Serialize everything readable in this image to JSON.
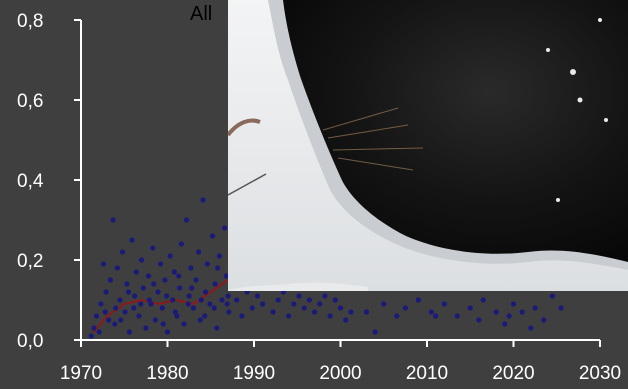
{
  "title_fragment": "All",
  "chart_data": {
    "type": "scatter",
    "title": "",
    "xlabel": "",
    "ylabel": "",
    "xlim": [
      1970,
      2030
    ],
    "ylim": [
      0.0,
      0.8
    ],
    "x_ticks": [
      1970,
      1980,
      1990,
      2000,
      2010,
      2020,
      2030
    ],
    "y_ticks": [
      0.0,
      0.2,
      0.4,
      0.6,
      0.8
    ],
    "x_tick_labels": [
      "1970",
      "1980",
      "1990",
      "2000",
      "2010",
      "2020",
      "2030"
    ],
    "y_tick_labels": [
      "0,0",
      "0,2",
      "0,4",
      "0,6",
      "0,8"
    ],
    "grid": false,
    "series": [
      {
        "kind": "points",
        "color": "#1a1a7a",
        "points": [
          [
            1971.2,
            0.01
          ],
          [
            1971.5,
            0.03
          ],
          [
            1971.8,
            0.06
          ],
          [
            1972.1,
            0.02
          ],
          [
            1972.3,
            0.09
          ],
          [
            1972.6,
            0.19
          ],
          [
            1972.9,
            0.12
          ],
          [
            1973.2,
            0.05
          ],
          [
            1973.4,
            0.15
          ],
          [
            1973.7,
            0.3
          ],
          [
            1973.9,
            0.04
          ],
          [
            1974.2,
            0.18
          ],
          [
            1974.5,
            0.1
          ],
          [
            1974.8,
            0.22
          ],
          [
            1975.1,
            0.07
          ],
          [
            1975.3,
            0.14
          ],
          [
            1975.6,
            0.02
          ],
          [
            1975.9,
            0.25
          ],
          [
            1976.2,
            0.11
          ],
          [
            1976.4,
            0.17
          ],
          [
            1976.7,
            0.06
          ],
          [
            1977.0,
            0.2
          ],
          [
            1977.2,
            0.13
          ],
          [
            1977.5,
            0.03
          ],
          [
            1977.8,
            0.16
          ],
          [
            1978.1,
            0.09
          ],
          [
            1978.3,
            0.23
          ],
          [
            1978.6,
            0.05
          ],
          [
            1978.9,
            0.12
          ],
          [
            1979.2,
            0.19
          ],
          [
            1979.4,
            0.08
          ],
          [
            1979.7,
            0.15
          ],
          [
            1980.0,
            0.02
          ],
          [
            1980.3,
            0.21
          ],
          [
            1980.6,
            0.1
          ],
          [
            1980.8,
            0.17
          ],
          [
            1981.1,
            0.06
          ],
          [
            1981.4,
            0.13
          ],
          [
            1981.6,
            0.24
          ],
          [
            1981.9,
            0.04
          ],
          [
            1982.2,
            0.3
          ],
          [
            1982.5,
            0.11
          ],
          [
            1982.7,
            0.18
          ],
          [
            1983.0,
            0.08
          ],
          [
            1983.3,
            0.15
          ],
          [
            1983.6,
            0.22
          ],
          [
            1983.8,
            0.05
          ],
          [
            1984.1,
            0.35
          ],
          [
            1984.4,
            0.12
          ],
          [
            1984.6,
            0.19
          ],
          [
            1984.9,
            0.09
          ],
          [
            1985.2,
            0.26
          ],
          [
            1985.5,
            0.14
          ],
          [
            1985.7,
            0.03
          ],
          [
            1986.0,
            0.21
          ],
          [
            1986.3,
            0.1
          ],
          [
            1986.6,
            0.28
          ],
          [
            1986.8,
            0.16
          ],
          [
            1987.1,
            0.07
          ],
          [
            1987.4,
            0.13
          ],
          [
            1974.0,
            0.08
          ],
          [
            1975.5,
            0.12
          ],
          [
            1976.9,
            0.09
          ],
          [
            1978.4,
            0.14
          ],
          [
            1979.9,
            0.11
          ],
          [
            1981.3,
            0.16
          ],
          [
            1982.8,
            0.13
          ],
          [
            1984.3,
            0.06
          ],
          [
            1985.8,
            0.18
          ],
          [
            1987.0,
            0.11
          ],
          [
            1972.8,
            0.07
          ],
          [
            1974.6,
            0.05
          ],
          [
            1976.1,
            0.08
          ],
          [
            1977.9,
            0.1
          ],
          [
            1979.5,
            0.04
          ],
          [
            1980.9,
            0.07
          ],
          [
            1982.4,
            0.09
          ],
          [
            1983.9,
            0.1
          ],
          [
            1985.4,
            0.08
          ],
          [
            1986.9,
            0.09
          ],
          [
            1988.0,
            0.1
          ],
          [
            1988.6,
            0.06
          ],
          [
            1989.2,
            0.12
          ],
          [
            1989.8,
            0.08
          ],
          [
            1990.4,
            0.11
          ],
          [
            1991.0,
            0.09
          ],
          [
            1991.6,
            0.13
          ],
          [
            1992.2,
            0.07
          ],
          [
            1992.8,
            0.1
          ],
          [
            1993.4,
            0.12
          ],
          [
            1994.0,
            0.06
          ],
          [
            1994.6,
            0.09
          ],
          [
            1995.2,
            0.11
          ],
          [
            1995.8,
            0.08
          ],
          [
            1996.4,
            0.1
          ],
          [
            1997.0,
            0.07
          ],
          [
            1997.6,
            0.09
          ],
          [
            1998.2,
            0.11
          ],
          [
            1998.8,
            0.06
          ],
          [
            1999.4,
            0.1
          ],
          [
            2000.0,
            0.08
          ],
          [
            2000.6,
            0.05
          ],
          [
            2001.2,
            0.07
          ],
          [
            2004.0,
            0.02
          ],
          [
            2005.0,
            0.09
          ],
          [
            2006.5,
            0.06
          ],
          [
            2007.5,
            0.08
          ],
          [
            2009.0,
            0.1
          ],
          [
            2010.5,
            0.07
          ],
          [
            2012.0,
            0.09
          ],
          [
            2013.5,
            0.06
          ],
          [
            2015.0,
            0.08
          ],
          [
            2016.5,
            0.1
          ],
          [
            2018.0,
            0.07
          ],
          [
            2019.0,
            0.04
          ],
          [
            2020.0,
            0.09
          ],
          [
            2021.0,
            0.07
          ],
          [
            2022.5,
            0.08
          ],
          [
            2023.5,
            0.05
          ],
          [
            2024.5,
            0.11
          ],
          [
            2025.5,
            0.08
          ],
          [
            2019.5,
            0.06
          ],
          [
            2022.0,
            0.03
          ],
          [
            2016.0,
            0.05
          ],
          [
            2011.0,
            0.06
          ],
          [
            2003.0,
            0.07
          ]
        ]
      },
      {
        "kind": "line",
        "color": "#8b1a1a",
        "points": [
          [
            1971.5,
            0.02
          ],
          [
            1973,
            0.06
          ],
          [
            1975,
            0.09
          ],
          [
            1977,
            0.1
          ],
          [
            1979,
            0.09
          ],
          [
            1981,
            0.1
          ],
          [
            1983,
            0.09
          ],
          [
            1985,
            0.12
          ],
          [
            1987,
            0.15
          ]
        ]
      }
    ]
  }
}
